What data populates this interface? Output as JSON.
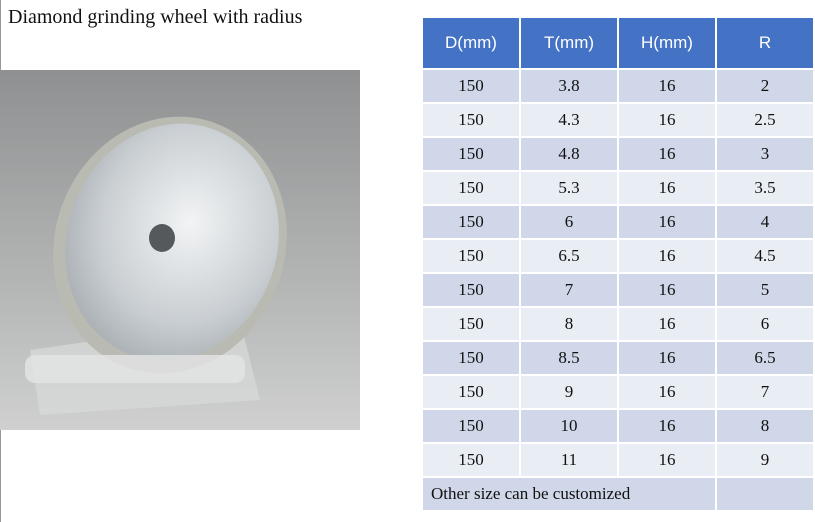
{
  "header": {
    "title": "Diamond grinding wheel with radius"
  },
  "table": {
    "columns": [
      "D(mm)",
      "T(mm)",
      "H(mm)",
      "R"
    ],
    "rows": [
      [
        "150",
        "3.8",
        "16",
        "2"
      ],
      [
        "150",
        "4.3",
        "16",
        "2.5"
      ],
      [
        "150",
        "4.8",
        "16",
        "3"
      ],
      [
        "150",
        "5.3",
        "16",
        "3.5"
      ],
      [
        "150",
        "6",
        "16",
        "4"
      ],
      [
        "150",
        "6.5",
        "16",
        "4.5"
      ],
      [
        "150",
        "7",
        "16",
        "5"
      ],
      [
        "150",
        "8",
        "16",
        "6"
      ],
      [
        "150",
        "8.5",
        "16",
        "6.5"
      ],
      [
        "150",
        "9",
        "16",
        "7"
      ],
      [
        "150",
        "10",
        "16",
        "8"
      ],
      [
        "150",
        "11",
        "16",
        "9"
      ]
    ],
    "note": "Other size can be customized"
  }
}
